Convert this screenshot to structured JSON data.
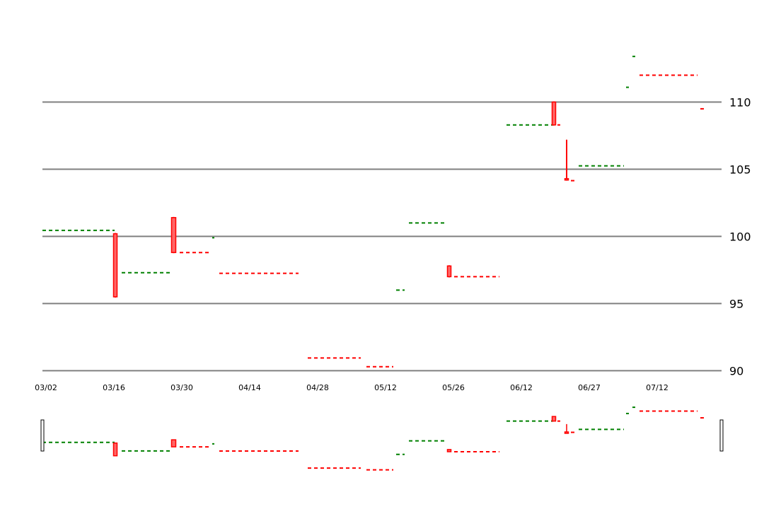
{
  "chart_data": {
    "type": "candlestick",
    "x_tick_labels": [
      "03/02",
      "03/16",
      "03/30",
      "04/14",
      "04/28",
      "05/12",
      "05/26",
      "06/12",
      "06/27",
      "07/12"
    ],
    "y_ticks": [
      90,
      95,
      100,
      105,
      110
    ],
    "ylim": [
      87.6,
      117.6
    ],
    "grid": true,
    "y_axis_side": "right",
    "colors": {
      "up": "#008000",
      "down": "#ff0000",
      "grid": "#808080",
      "handle": "#000000"
    },
    "segments": [
      {
        "dir": "up",
        "x0": 0,
        "x1": 102,
        "y": 100.45,
        "candle": null
      },
      {
        "dir": "down",
        "x0": 102,
        "x1": 104,
        "y": 95.5,
        "candle": {
          "open": 100.2,
          "close": 95.5,
          "high": 100.25,
          "low": 95.45
        }
      },
      {
        "dir": "up",
        "x0": 112,
        "x1": 180,
        "y": 97.3,
        "candle": null
      },
      {
        "dir": "down",
        "x0": 184,
        "x1": 187,
        "y": 98.8,
        "candle": {
          "open": 101.4,
          "close": 98.8,
          "high": 101.45,
          "low": 98.75
        }
      },
      {
        "dir": "down",
        "x0": 194,
        "x1": 236,
        "y": 98.8,
        "candle": null
      },
      {
        "dir": "up",
        "x0": 240,
        "x1": 243,
        "y": 99.9,
        "candle": null
      },
      {
        "dir": "down",
        "x0": 250,
        "x1": 362,
        "y": 97.25,
        "candle": null
      },
      {
        "dir": "down",
        "x0": 375,
        "x1": 450,
        "y": 90.95,
        "candle": null
      },
      {
        "dir": "down",
        "x0": 458,
        "x1": 496,
        "y": 90.3,
        "candle": null
      },
      {
        "dir": "up",
        "x0": 500,
        "x1": 512,
        "y": 96.0,
        "candle": null
      },
      {
        "dir": "up",
        "x0": 518,
        "x1": 568,
        "y": 101.0,
        "candle": null
      },
      {
        "dir": "down",
        "x0": 574,
        "x1": 576,
        "y": 97.0,
        "candle": {
          "open": 97.8,
          "close": 97.0,
          "high": 97.85,
          "low": 96.95
        }
      },
      {
        "dir": "down",
        "x0": 582,
        "x1": 646,
        "y": 97.0,
        "candle": null
      },
      {
        "dir": "up",
        "x0": 656,
        "x1": 722,
        "y": 108.3,
        "candle": null
      },
      {
        "dir": "down",
        "x0": 722,
        "x1": 724,
        "y": 108.3,
        "candle": {
          "open": 110.0,
          "close": 108.3,
          "high": 110.05,
          "low": 108.25
        }
      },
      {
        "dir": "down",
        "x0": 728,
        "x1": 732,
        "y": 108.3,
        "candle": null
      },
      {
        "dir": "down",
        "x0": 740,
        "x1": 742,
        "y": 104.3,
        "candle": {
          "open": 104.3,
          "close": 104.2,
          "high": 107.2,
          "low": 104.15
        }
      },
      {
        "dir": "down",
        "x0": 747,
        "x1": 753,
        "y": 104.15,
        "candle": null
      },
      {
        "dir": "up",
        "x0": 758,
        "x1": 822,
        "y": 105.25,
        "candle": null
      },
      {
        "dir": "up",
        "x0": 825,
        "x1": 829,
        "y": 111.1,
        "candle": null
      },
      {
        "dir": "up",
        "x0": 834,
        "x1": 838,
        "y": 113.4,
        "candle": null
      },
      {
        "dir": "down",
        "x0": 844,
        "x1": 926,
        "y": 112.0,
        "candle": null
      },
      {
        "dir": "down",
        "x0": 930,
        "x1": 936,
        "y": 109.5,
        "candle": null
      }
    ]
  }
}
